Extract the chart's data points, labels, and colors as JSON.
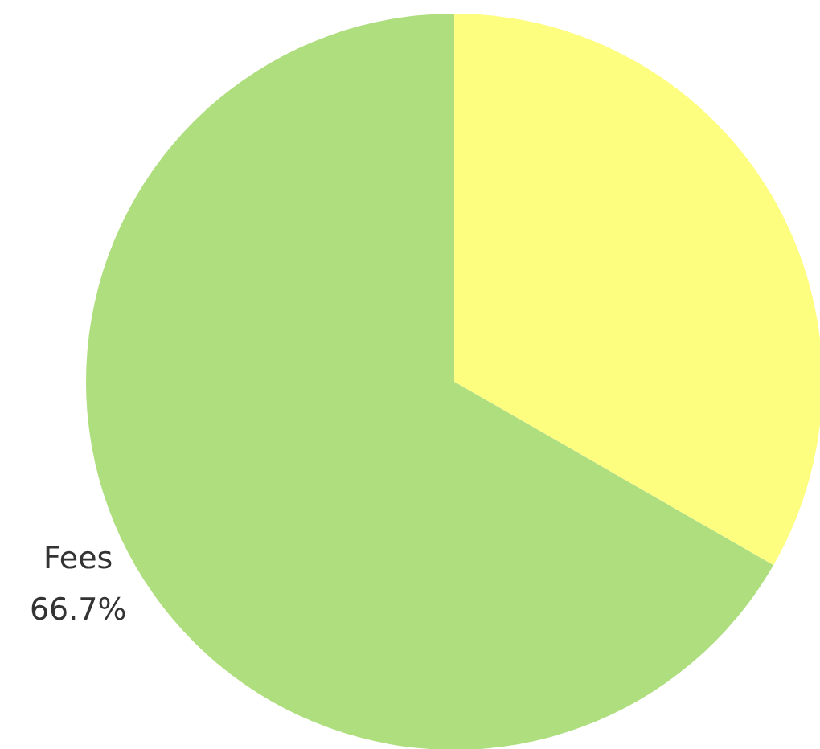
{
  "chart_data": {
    "type": "pie",
    "categories": [
      null,
      "Fees"
    ],
    "values": [
      33.3,
      66.7
    ],
    "colors": [
      "#fdfd80",
      "#aede7e"
    ],
    "value_labels": [
      null,
      "66.7%"
    ]
  }
}
